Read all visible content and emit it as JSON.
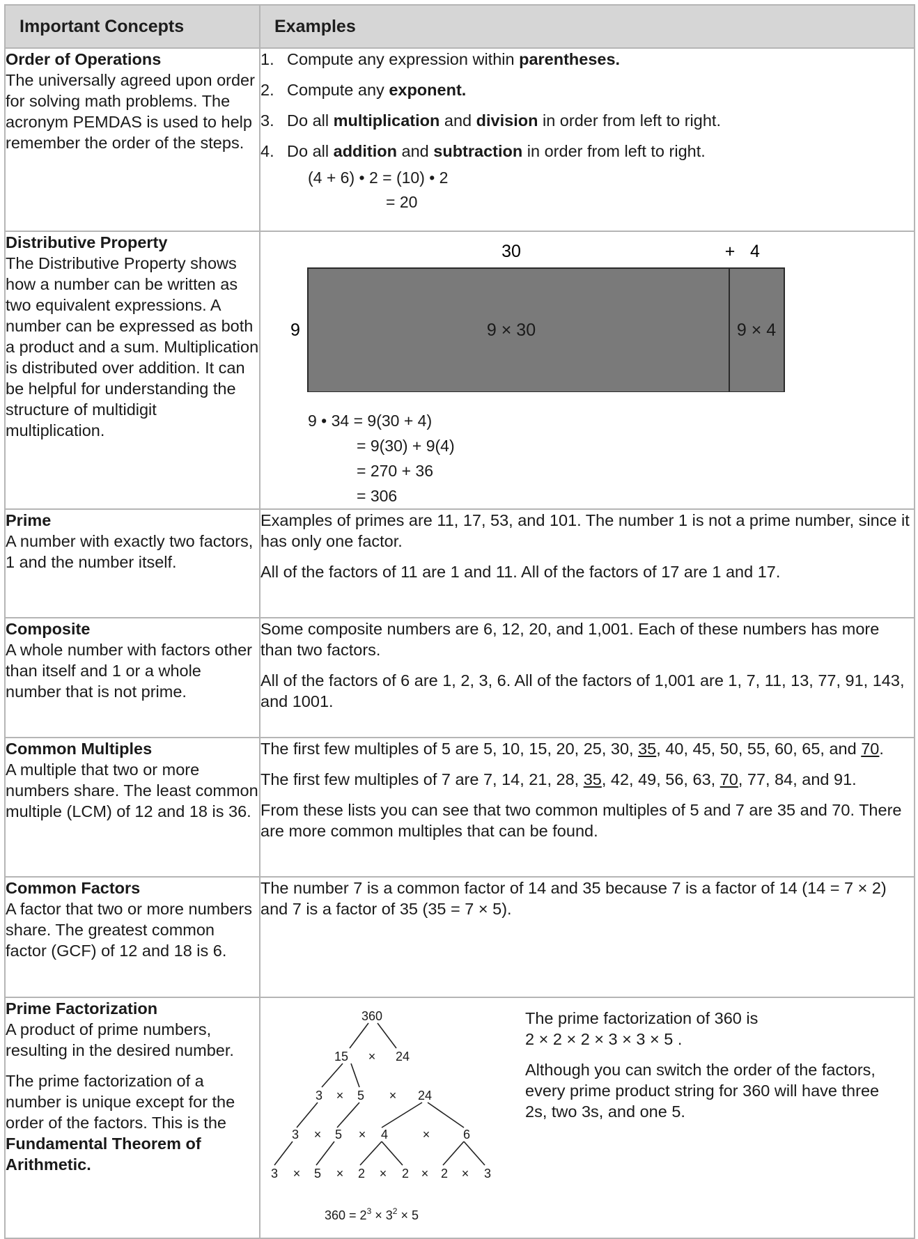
{
  "header": {
    "col1": "Important Concepts",
    "col2": "Examples"
  },
  "order": {
    "name": "Order of Operations",
    "desc": "The universally agreed upon order for solving math problems. The acronym PEMDAS is used to help remember the order of the steps.",
    "steps": [
      {
        "n": "1.",
        "a": "Compute any expression within ",
        "b": "parentheses.",
        "c": "",
        "d": "",
        "e": ""
      },
      {
        "n": "2.",
        "a": "Compute any ",
        "b": "exponent.",
        "c": "",
        "d": "",
        "e": ""
      },
      {
        "n": "3.",
        "a": "Do all ",
        "b": "multiplication",
        "c": " and ",
        "d": "division",
        "e": " in order from left to right."
      },
      {
        "n": "4.",
        "a": "Do all ",
        "b": "addition",
        "c": " and ",
        "d": "subtraction",
        "e": " in order from left to right."
      }
    ],
    "eq1": "(4 + 6) • 2 = (10) • 2",
    "eq2": "= 20"
  },
  "distributive": {
    "name": "Distributive Property",
    "desc": "The Distributive Property shows how a number can be written as two equivalent expressions. A number can be expressed as both a product and a sum. Multiplication is distributed over addition. It can be helpful for understanding the structure of multidigit multiplication.",
    "area_model": {
      "top_left": "30",
      "top_plus": "+",
      "top_right": "4",
      "side": "9",
      "big_box": "9 × 30",
      "small_box": "9 × 4",
      "fill": "#7a7a7a"
    },
    "eq": [
      "9 • 34 = 9(30 + 4)",
      "= 9(30) + 9(4)",
      "= 270 + 36",
      "= 306"
    ]
  },
  "prime": {
    "name": "Prime",
    "desc": "A number with exactly two factors, 1 and the number itself.",
    "p1": "Examples of primes are 11, 17, 53, and 101. The number 1 is not a prime number, since it has only one factor.",
    "p2": "All of the factors of 11 are 1 and 11. All of the factors of 17 are 1 and 17."
  },
  "composite": {
    "name": "Composite",
    "desc": "A whole number with factors other than itself and 1 or a whole number that is not prime.",
    "p1": "Some composite numbers are 6, 12, 20, and 1,001. Each of these numbers has more than two factors.",
    "p2": "All of the factors of 6 are 1, 2, 3, 6. All of the factors of 1,001 are 1, 7, 11, 13, 77, 91, 143, and 1001."
  },
  "multiples": {
    "name": "Common Multiples",
    "desc": "A multiple that two or more numbers share. The least common multiple (LCM) of 12 and 18 is 36.",
    "p1a": "The first few multiples of 5 are 5, 10, 15, 20, 25, 30, ",
    "p1u1": "35",
    "p1b": ", 40, 45, 50, 55, 60, 65, and ",
    "p1u2": "70",
    "p1c": ".",
    "p2a": "The first few multiples of 7 are 7, 14, 21, 28, ",
    "p2u1": "35",
    "p2b": ", 42, 49, 56, 63, ",
    "p2u2": "70",
    "p2c": ", 77, 84, and 91.",
    "p3": "From these lists you can see that two common multiples of 5 and 7 are 35 and 70. There are more common multiples that can be found."
  },
  "factors": {
    "name": "Common Factors",
    "desc": "A factor that two or more numbers share. The greatest common factor (GCF) of 12 and 18 is 6.",
    "p1": "The number 7 is a common factor of 14 and 35 because 7 is a factor of 14 (14 = 7 × 2) and 7 is a factor of 35 (35 = 7 × 5)."
  },
  "pf": {
    "name": "Prime Factorization",
    "desc1": "A product of prime numbers, resulting in the desired number.",
    "desc2a": "The prime factorization of a number is unique except for the order of the factors. This is the ",
    "desc2b": "Fundamental Theorem of Arithmetic.",
    "p1a": "The prime factorization of 360 is",
    "p1b": "2 × 2 × 2 × 3 × 3 × 5 .",
    "p2": "Although you can switch the order of the factors, every prime product string for 360 will have three 2s, two 3s, and one 5.",
    "tree": {
      "r0": [
        "360"
      ],
      "r1": [
        "15",
        "×",
        "24"
      ],
      "r2": [
        "3",
        "×",
        "5",
        "×",
        "24"
      ],
      "r3": [
        "3",
        "×",
        "5",
        "×",
        "4",
        "×",
        "6"
      ],
      "r4": [
        "3",
        "×",
        "5",
        "×",
        "2",
        "×",
        "2",
        "×",
        "2",
        "×",
        "3"
      ],
      "formula_base": "360 = 2",
      "formula_e1": "3",
      "formula_mid": " × 3",
      "formula_e2": "2",
      "formula_end": " × 5"
    }
  }
}
